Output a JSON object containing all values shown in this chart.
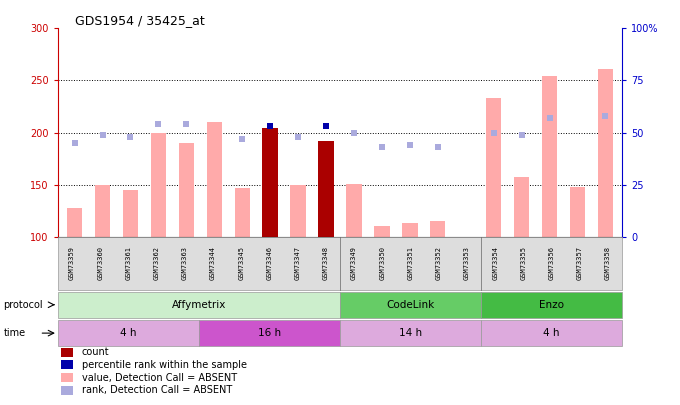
{
  "title": "GDS1954 / 35425_at",
  "samples": [
    "GSM73359",
    "GSM73360",
    "GSM73361",
    "GSM73362",
    "GSM73363",
    "GSM73344",
    "GSM73345",
    "GSM73346",
    "GSM73347",
    "GSM73348",
    "GSM73349",
    "GSM73350",
    "GSM73351",
    "GSM73352",
    "GSM73353",
    "GSM73354",
    "GSM73355",
    "GSM73356",
    "GSM73357",
    "GSM73358"
  ],
  "bar_values": [
    128,
    150,
    145,
    200,
    190,
    210,
    147,
    204,
    150,
    192,
    151,
    110,
    113,
    115,
    null,
    233,
    157,
    254,
    148,
    261
  ],
  "bar_colors": [
    "#ffaaaa",
    "#ffaaaa",
    "#ffaaaa",
    "#ffaaaa",
    "#ffaaaa",
    "#ffaaaa",
    "#ffaaaa",
    "#aa0000",
    "#ffaaaa",
    "#aa0000",
    "#ffaaaa",
    "#ffaaaa",
    "#ffaaaa",
    "#ffaaaa",
    "#ffaaaa",
    "#ffaaaa",
    "#ffaaaa",
    "#ffaaaa",
    "#ffaaaa",
    "#ffaaaa"
  ],
  "rank_squares": [
    45,
    49,
    48,
    54,
    54,
    null,
    47,
    53,
    48,
    53,
    50,
    43,
    44,
    43,
    null,
    50,
    49,
    57,
    null,
    58
  ],
  "rank_colors": [
    "#aaaadd",
    "#aaaadd",
    "#aaaadd",
    "#aaaadd",
    "#aaaadd",
    "#aaaadd",
    "#aaaadd",
    "#0000aa",
    "#aaaadd",
    "#0000aa",
    "#aaaadd",
    "#aaaadd",
    "#aaaadd",
    "#aaaadd",
    "#aaaadd",
    "#aaaadd",
    "#aaaadd",
    "#aaaadd",
    "#aaaadd",
    "#aaaadd"
  ],
  "ylim_left": [
    100,
    300
  ],
  "ylim_right": [
    0,
    100
  ],
  "yticks_left": [
    100,
    150,
    200,
    250,
    300
  ],
  "yticks_right": [
    0,
    25,
    50,
    75,
    100
  ],
  "protocol_groups": [
    {
      "label": "Affymetrix",
      "start": 0,
      "end": 9,
      "color": "#cceecc"
    },
    {
      "label": "CodeLink",
      "start": 10,
      "end": 14,
      "color": "#66cc66"
    },
    {
      "label": "Enzo",
      "start": 15,
      "end": 19,
      "color": "#44bb44"
    }
  ],
  "time_groups": [
    {
      "label": "4 h",
      "start": 0,
      "end": 4,
      "color": "#ddaadd"
    },
    {
      "label": "16 h",
      "start": 5,
      "end": 9,
      "color": "#cc55cc"
    },
    {
      "label": "14 h",
      "start": 10,
      "end": 14,
      "color": "#ddaadd"
    },
    {
      "label": "4 h",
      "start": 15,
      "end": 19,
      "color": "#ddaadd"
    }
  ],
  "legend_items": [
    {
      "color": "#aa0000",
      "label": "count"
    },
    {
      "color": "#0000aa",
      "label": "percentile rank within the sample"
    },
    {
      "color": "#ffaaaa",
      "label": "value, Detection Call = ABSENT"
    },
    {
      "color": "#aaaadd",
      "label": "rank, Detection Call = ABSENT"
    }
  ],
  "bg_color": "#ffffff",
  "left_axis_color": "#cc0000",
  "right_axis_color": "#0000cc",
  "xticklabel_bg": "#dddddd"
}
